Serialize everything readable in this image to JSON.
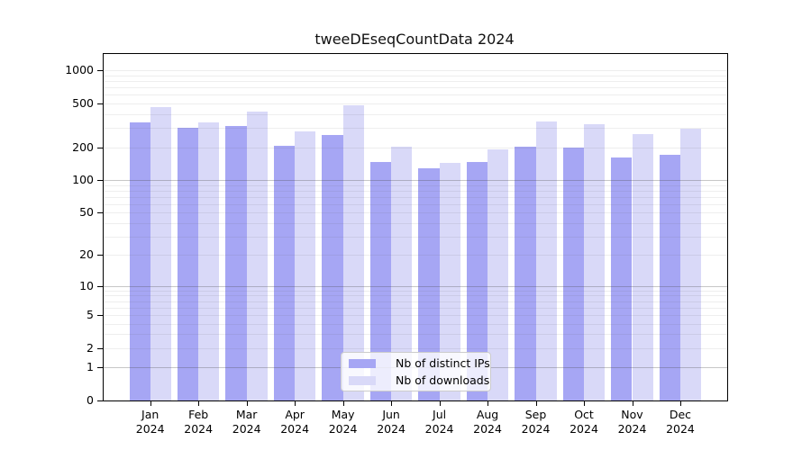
{
  "chart_data": {
    "type": "bar",
    "title": "tweeDEseqCountData 2024",
    "scale": "log1p",
    "categories": [
      "Jan",
      "Feb",
      "Mar",
      "Apr",
      "May",
      "Jun",
      "Jul",
      "Aug",
      "Sep",
      "Oct",
      "Nov",
      "Dec"
    ],
    "x_sublabel": "2024",
    "series": [
      {
        "name": "Nb of distinct IPs",
        "color": "#a6a6f4",
        "values": [
          335,
          300,
          310,
          206,
          258,
          145,
          127,
          145,
          202,
          198,
          162,
          169
        ]
      },
      {
        "name": "Nb of downloads",
        "color": "#d9d9f8",
        "values": [
          460,
          335,
          420,
          278,
          486,
          202,
          144,
          192,
          346,
          322,
          264,
          295
        ]
      }
    ],
    "y_ticks": [
      0,
      1,
      2,
      5,
      10,
      20,
      50,
      100,
      200,
      500,
      1000
    ],
    "ylim": [
      0,
      1100
    ],
    "xlabel": "",
    "ylabel": "",
    "grid": true,
    "grid_minor_values": [
      1,
      2,
      3,
      4,
      5,
      6,
      7,
      8,
      9,
      10,
      20,
      30,
      40,
      50,
      60,
      70,
      80,
      90,
      100,
      200,
      300,
      400,
      500,
      600,
      700,
      800,
      900,
      1000
    ],
    "grid_major_values": [
      1,
      10,
      100
    ],
    "legend_position": "bottom-center"
  },
  "colors": {
    "background": "#ffffff",
    "axis": "#000000",
    "grid_minor": "#ececec",
    "grid_major": "#c7c7c7",
    "legend_border": "#cccccc"
  }
}
